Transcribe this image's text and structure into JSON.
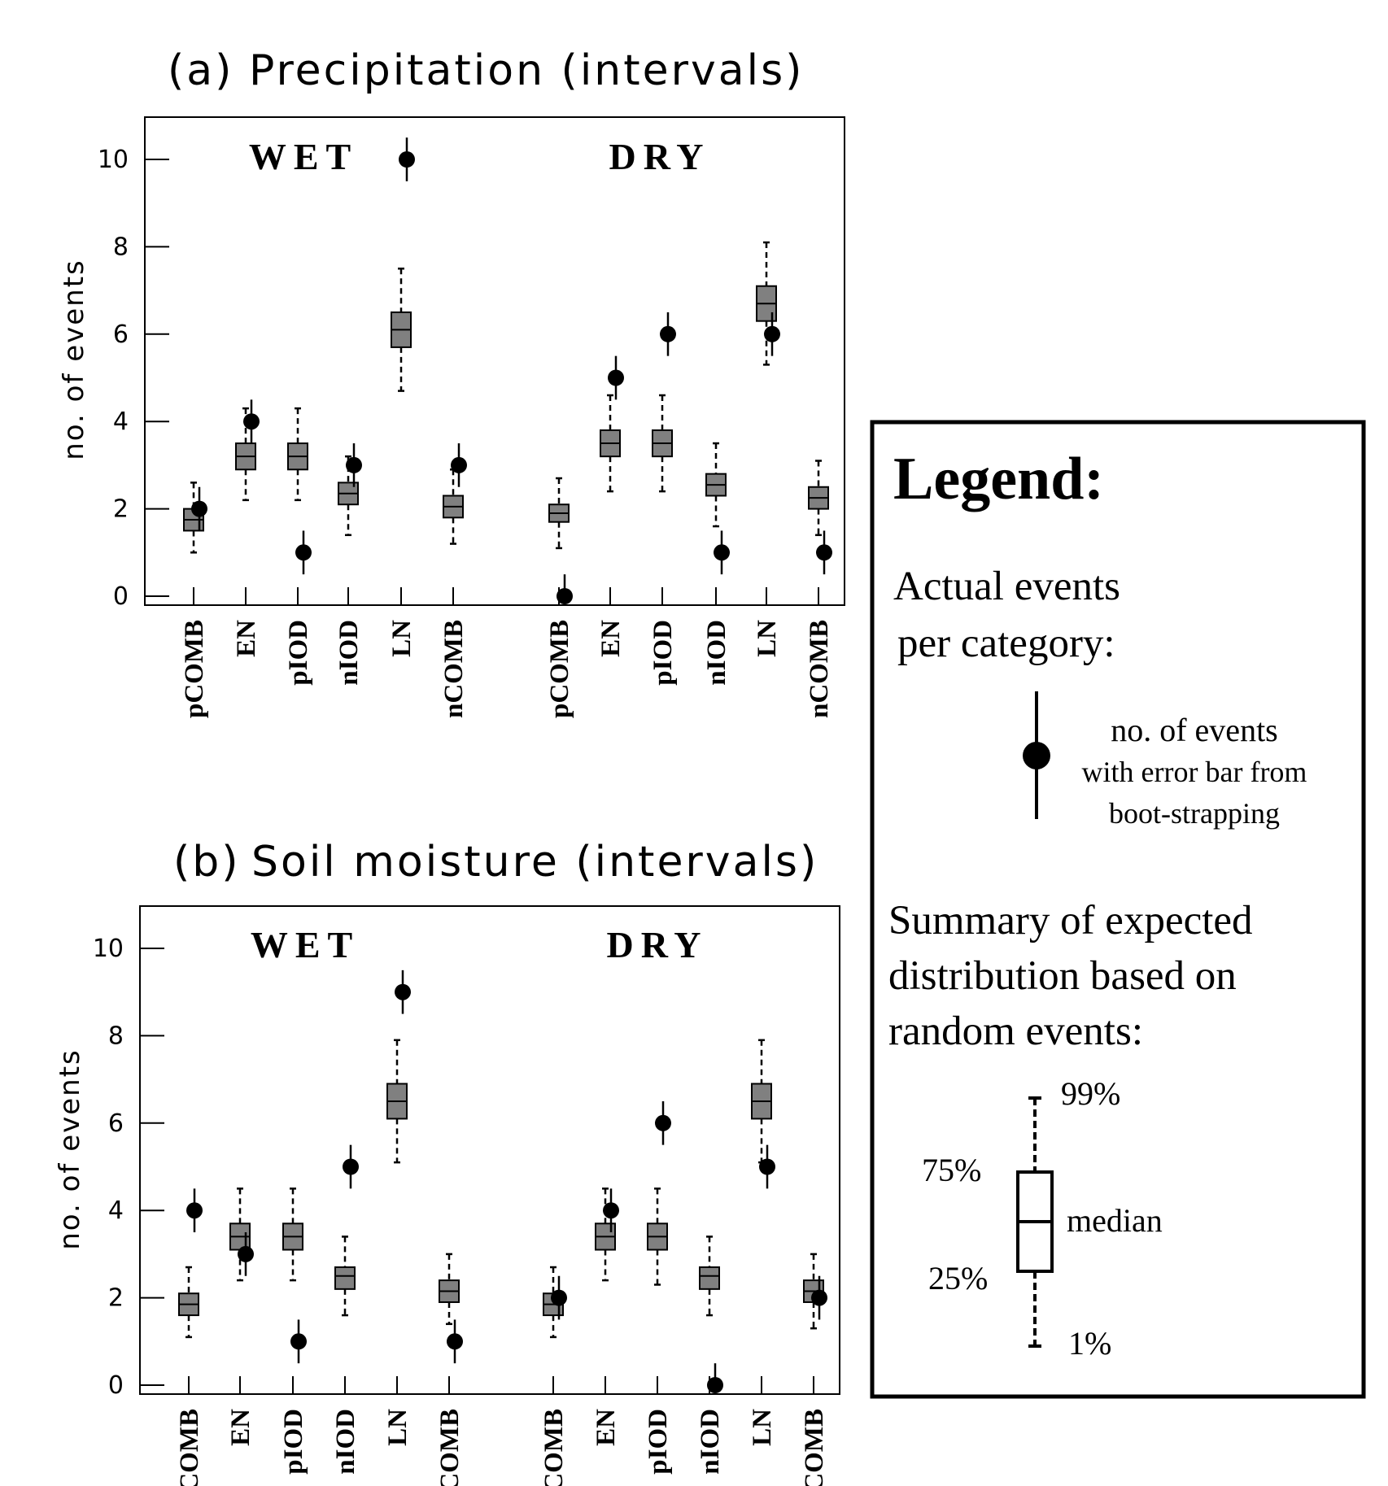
{
  "chart_data": [
    {
      "id": "a",
      "type": "box",
      "title_label": "(a)",
      "title": "Precipitation (intervals)",
      "ylabel": "no. of events",
      "ylim": [
        0,
        11
      ],
      "yticks": [
        0,
        2,
        4,
        6,
        8,
        10
      ],
      "groups": [
        {
          "label": "WET",
          "categories": [
            "pCOMB",
            "EN",
            "pIOD",
            "nIOD",
            "LN",
            "nCOMB"
          ]
        },
        {
          "label": "DRY",
          "categories": [
            "pCOMB",
            "EN",
            "pIOD",
            "nIOD",
            "LN",
            "nCOMB"
          ]
        }
      ],
      "boxes": [
        {
          "p1": 1.0,
          "q1": 1.5,
          "median": 1.75,
          "q3": 2.0,
          "p99": 2.6
        },
        {
          "p1": 2.2,
          "q1": 2.9,
          "median": 3.2,
          "q3": 3.5,
          "p99": 4.3
        },
        {
          "p1": 2.2,
          "q1": 2.9,
          "median": 3.2,
          "q3": 3.5,
          "p99": 4.3
        },
        {
          "p1": 1.4,
          "q1": 2.1,
          "median": 2.35,
          "q3": 2.6,
          "p99": 3.2
        },
        {
          "p1": 4.7,
          "q1": 5.7,
          "median": 6.1,
          "q3": 6.5,
          "p99": 7.5
        },
        {
          "p1": 1.2,
          "q1": 1.8,
          "median": 2.05,
          "q3": 2.3,
          "p99": 2.9
        },
        {
          "p1": 1.1,
          "q1": 1.7,
          "median": 1.9,
          "q3": 2.1,
          "p99": 2.7
        },
        {
          "p1": 2.4,
          "q1": 3.2,
          "median": 3.5,
          "q3": 3.8,
          "p99": 4.6
        },
        {
          "p1": 2.4,
          "q1": 3.2,
          "median": 3.5,
          "q3": 3.8,
          "p99": 4.6
        },
        {
          "p1": 1.6,
          "q1": 2.3,
          "median": 2.55,
          "q3": 2.8,
          "p99": 3.5
        },
        {
          "p1": 5.3,
          "q1": 6.3,
          "median": 6.7,
          "q3": 7.1,
          "p99": 8.1
        },
        {
          "p1": 1.4,
          "q1": 2.0,
          "median": 2.25,
          "q3": 2.5,
          "p99": 3.1
        }
      ],
      "actual": [
        {
          "value": 2,
          "err": [
            1.5,
            2.5
          ]
        },
        {
          "value": 4,
          "err": [
            3.5,
            4.5
          ]
        },
        {
          "value": 1,
          "err": [
            0.5,
            1.5
          ]
        },
        {
          "value": 3,
          "err": [
            2.5,
            3.5
          ]
        },
        {
          "value": 10,
          "err": [
            9.5,
            10.5
          ]
        },
        {
          "value": 3,
          "err": [
            2.5,
            3.5
          ]
        },
        {
          "value": 0,
          "err": [
            0,
            0.5
          ]
        },
        {
          "value": 5,
          "err": [
            4.5,
            5.5
          ]
        },
        {
          "value": 6,
          "err": [
            5.5,
            6.5
          ]
        },
        {
          "value": 1,
          "err": [
            0.5,
            1.5
          ]
        },
        {
          "value": 6,
          "err": [
            5.5,
            6.5
          ]
        },
        {
          "value": 1,
          "err": [
            0.5,
            1.5
          ]
        }
      ]
    },
    {
      "id": "b",
      "type": "box",
      "title_label": "(b)",
      "title": "Soil moisture (intervals)",
      "ylabel": "no. of events",
      "ylim": [
        0,
        11
      ],
      "yticks": [
        0,
        2,
        4,
        6,
        8,
        10
      ],
      "groups": [
        {
          "label": "WET",
          "categories": [
            "COMB",
            "EN",
            "pIOD",
            "nIOD",
            "LN",
            "COMB"
          ]
        },
        {
          "label": "DRY",
          "categories": [
            "COMB",
            "EN",
            "pIOD",
            "nIOD",
            "LN",
            "COMB"
          ]
        }
      ],
      "boxes": [
        {
          "p1": 1.1,
          "q1": 1.6,
          "median": 1.85,
          "q3": 2.1,
          "p99": 2.7
        },
        {
          "p1": 2.4,
          "q1": 3.1,
          "median": 3.4,
          "q3": 3.7,
          "p99": 4.5
        },
        {
          "p1": 2.4,
          "q1": 3.1,
          "median": 3.4,
          "q3": 3.7,
          "p99": 4.5
        },
        {
          "p1": 1.6,
          "q1": 2.2,
          "median": 2.5,
          "q3": 2.7,
          "p99": 3.4
        },
        {
          "p1": 5.1,
          "q1": 6.1,
          "median": 6.5,
          "q3": 6.9,
          "p99": 7.9
        },
        {
          "p1": 1.4,
          "q1": 1.9,
          "median": 2.15,
          "q3": 2.4,
          "p99": 3.0
        },
        {
          "p1": 1.1,
          "q1": 1.6,
          "median": 1.85,
          "q3": 2.1,
          "p99": 2.7
        },
        {
          "p1": 2.4,
          "q1": 3.1,
          "median": 3.4,
          "q3": 3.7,
          "p99": 4.5
        },
        {
          "p1": 2.3,
          "q1": 3.1,
          "median": 3.4,
          "q3": 3.7,
          "p99": 4.5
        },
        {
          "p1": 1.6,
          "q1": 2.2,
          "median": 2.5,
          "q3": 2.7,
          "p99": 3.4
        },
        {
          "p1": 5.1,
          "q1": 6.1,
          "median": 6.5,
          "q3": 6.9,
          "p99": 7.9
        },
        {
          "p1": 1.3,
          "q1": 1.9,
          "median": 2.15,
          "q3": 2.4,
          "p99": 3.0
        }
      ],
      "actual": [
        {
          "value": 4,
          "err": [
            3.5,
            4.5
          ]
        },
        {
          "value": 3,
          "err": [
            2.5,
            3.5
          ]
        },
        {
          "value": 1,
          "err": [
            0.5,
            1.5
          ]
        },
        {
          "value": 5,
          "err": [
            4.5,
            5.5
          ]
        },
        {
          "value": 9,
          "err": [
            8.5,
            9.5
          ]
        },
        {
          "value": 1,
          "err": [
            0.5,
            1.5
          ]
        },
        {
          "value": 2,
          "err": [
            1.5,
            2.5
          ]
        },
        {
          "value": 4,
          "err": [
            3.5,
            4.5
          ]
        },
        {
          "value": 6,
          "err": [
            5.5,
            6.5
          ]
        },
        {
          "value": 0,
          "err": [
            0,
            0.5
          ]
        },
        {
          "value": 5,
          "err": [
            4.5,
            5.5
          ]
        },
        {
          "value": 2,
          "err": [
            1.5,
            2.5
          ]
        }
      ]
    }
  ],
  "legend": {
    "title": "Legend:",
    "actual_heading": [
      "Actual events",
      "per category:"
    ],
    "actual_desc": [
      "no. of events",
      "with error bar from",
      "boot-strapping"
    ],
    "summary_heading": [
      "Summary of expected",
      "distribution based on",
      "random events:"
    ],
    "p99": "99%",
    "q3": "75%",
    "median": "median",
    "q1": "25%",
    "p1": "1%"
  },
  "colors": {
    "box_fill": "#808080",
    "ink": "#000000",
    "background": "#ffffff"
  }
}
